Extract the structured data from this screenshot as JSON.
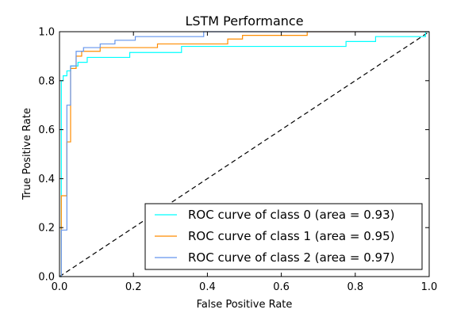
{
  "chart_data": {
    "type": "line",
    "title": "LSTM Performance",
    "xlabel": "False Positive Rate",
    "ylabel": "True Positive Rate",
    "xlim": [
      0.0,
      1.0
    ],
    "ylim": [
      0.0,
      1.0
    ],
    "xticks": [
      "0.0",
      "0.2",
      "0.4",
      "0.6",
      "0.8",
      "1.0"
    ],
    "yticks": [
      "0.0",
      "0.2",
      "0.4",
      "0.6",
      "0.8",
      "1.0"
    ],
    "grid": false,
    "legend_position": "lower-right",
    "diagonal": {
      "x": [
        0,
        1
      ],
      "y": [
        0,
        1
      ],
      "style": "dashed",
      "color": "#000000"
    },
    "series": [
      {
        "name": "ROC curve of class 0 (area = 0.93)",
        "color": "#00ffff",
        "x": [
          0,
          0.005,
          0.005,
          0.01,
          0.01,
          0.02,
          0.02,
          0.03,
          0.03,
          0.05,
          0.05,
          0.075,
          0.075,
          0.19,
          0.19,
          0.33,
          0.33,
          0.775,
          0.775,
          0.855,
          0.855,
          0.99,
          0.99,
          1.0
        ],
        "y": [
          0,
          0,
          0.8,
          0.8,
          0.82,
          0.82,
          0.84,
          0.84,
          0.86,
          0.86,
          0.875,
          0.875,
          0.895,
          0.895,
          0.915,
          0.915,
          0.94,
          0.94,
          0.96,
          0.96,
          0.98,
          0.98,
          1.0,
          1.0
        ]
      },
      {
        "name": "ROC curve of class 1 (area = 0.95)",
        "color": "#ff8c00",
        "x": [
          0,
          0.005,
          0.005,
          0.02,
          0.02,
          0.03,
          0.03,
          0.045,
          0.045,
          0.06,
          0.06,
          0.11,
          0.11,
          0.265,
          0.265,
          0.455,
          0.455,
          0.495,
          0.495,
          0.665,
          0.665,
          0.67,
          0.67,
          1.0
        ],
        "y": [
          0,
          0,
          0.33,
          0.33,
          0.55,
          0.55,
          0.85,
          0.85,
          0.9,
          0.9,
          0.92,
          0.92,
          0.935,
          0.935,
          0.95,
          0.95,
          0.97,
          0.97,
          0.985,
          0.985,
          0.985,
          0.985,
          1.0,
          1.0
        ]
      },
      {
        "name": "ROC curve of class 2 (area = 0.97)",
        "color": "#6495ed",
        "x": [
          0,
          0.005,
          0.005,
          0.02,
          0.02,
          0.03,
          0.03,
          0.045,
          0.045,
          0.065,
          0.065,
          0.11,
          0.11,
          0.15,
          0.15,
          0.205,
          0.205,
          0.39,
          0.39,
          1.0
        ],
        "y": [
          0,
          0,
          0.19,
          0.19,
          0.7,
          0.7,
          0.86,
          0.86,
          0.92,
          0.92,
          0.935,
          0.935,
          0.95,
          0.95,
          0.965,
          0.965,
          0.98,
          0.98,
          1.0,
          1.0
        ]
      }
    ]
  }
}
